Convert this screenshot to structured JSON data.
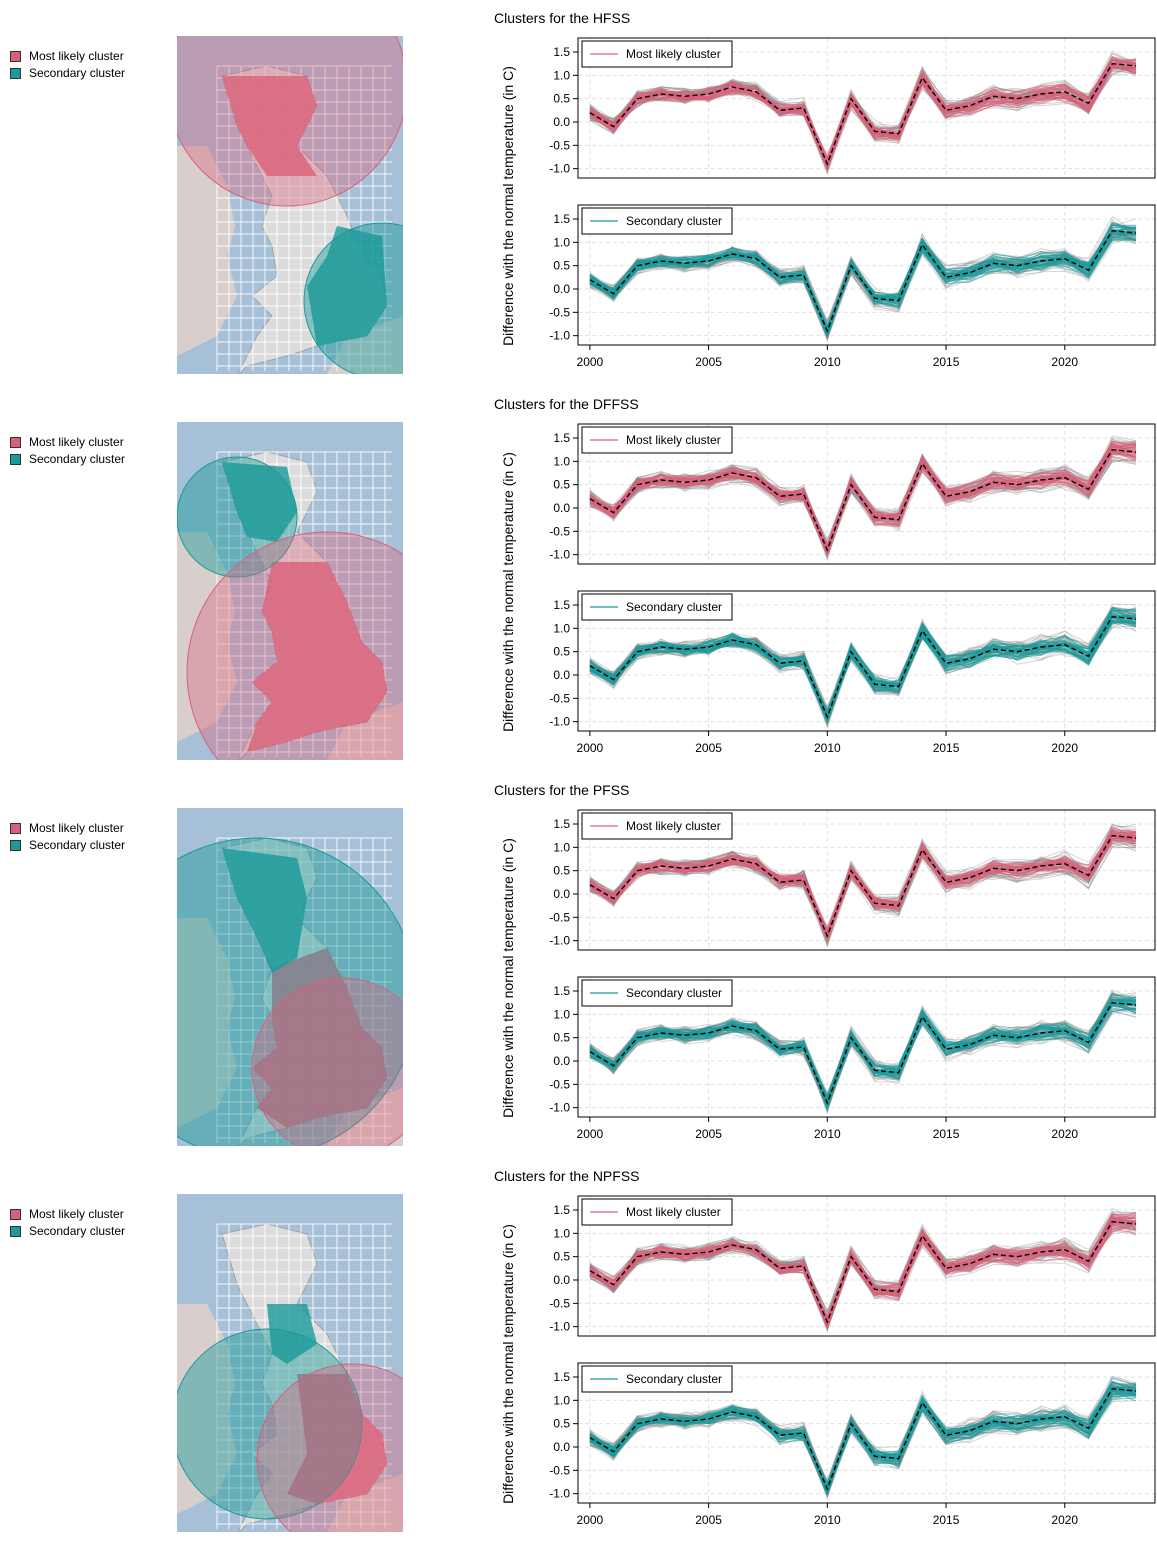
{
  "colors": {
    "most_likely": "#d9607a",
    "secondary": "#1a9a9a",
    "background_lines": "#888888"
  },
  "panels": [
    {
      "title": "Clusters for the HFSS",
      "legend": [
        "Most likely cluster",
        "Secondary cluster"
      ],
      "top_legend": "Most likely cluster",
      "bottom_legend": "Secondary cluster"
    },
    {
      "title": "Clusters for the DFFSS",
      "legend": [
        "Most likely cluster",
        "Secondary cluster"
      ],
      "top_legend": "Most likely cluster",
      "bottom_legend": "Secondary cluster"
    },
    {
      "title": "Clusters for the PFSS",
      "legend": [
        "Most likely cluster",
        "Secondary cluster"
      ],
      "top_legend": "Most likely cluster",
      "bottom_legend": "Secondary cluster"
    },
    {
      "title": "Clusters for the NPFSS",
      "legend": [
        "Most likely cluster",
        "Secondary cluster"
      ],
      "top_legend": "Most likely cluster",
      "bottom_legend": "Secondary cluster"
    }
  ],
  "chart_data": {
    "type": "line",
    "ylabel": "Difference with the normal temperature (in C)",
    "x": [
      2000,
      2001,
      2002,
      2003,
      2004,
      2005,
      2006,
      2007,
      2008,
      2009,
      2010,
      2011,
      2012,
      2013,
      2014,
      2015,
      2016,
      2017,
      2018,
      2019,
      2020,
      2021,
      2022,
      2023
    ],
    "mean_series": [
      0.2,
      -0.1,
      0.5,
      0.6,
      0.55,
      0.6,
      0.75,
      0.65,
      0.25,
      0.3,
      -0.9,
      0.5,
      -0.2,
      -0.25,
      0.95,
      0.25,
      0.35,
      0.55,
      0.5,
      0.6,
      0.65,
      0.4,
      1.25,
      1.2
    ],
    "xlim": [
      1999.5,
      2023.8
    ],
    "ylim": [
      -1.2,
      1.8
    ],
    "xticks": [
      2000,
      2005,
      2010,
      2015,
      2020
    ],
    "yticks": [
      "1.5",
      "1.0",
      "0.5",
      "0.0",
      "-0.5",
      "-1.0"
    ],
    "ytick_values": [
      1.5,
      1.0,
      0.5,
      0.0,
      -0.5,
      -1.0
    ],
    "grid": true
  }
}
